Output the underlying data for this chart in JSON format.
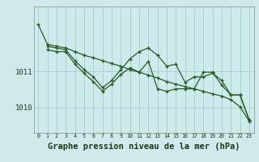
{
  "background_color": "#ceeaea",
  "grid_color": "#aacccc",
  "line_color": "#2d5a27",
  "xlabel": "Graphe pression niveau de la mer (hPa)",
  "xlabel_fontsize": 7.5,
  "ylabel_ticks": [
    1010,
    1011
  ],
  "xlim": [
    -0.5,
    23.5
  ],
  "ylim": [
    1009.3,
    1012.8
  ],
  "series1": {
    "x": [
      0,
      1,
      2,
      3,
      4,
      5,
      6,
      7,
      8,
      9,
      10,
      11,
      12,
      13,
      14,
      15,
      16,
      17,
      18,
      19,
      20,
      21,
      22,
      23
    ],
    "y": [
      1012.3,
      1011.75,
      1011.7,
      1011.65,
      1011.55,
      1011.45,
      1011.38,
      1011.3,
      1011.22,
      1011.15,
      1011.05,
      1010.98,
      1010.9,
      1010.82,
      1010.72,
      1010.65,
      1010.58,
      1010.52,
      1010.45,
      1010.38,
      1010.32,
      1010.22,
      1010.02,
      1009.62
    ]
  },
  "series2": {
    "x": [
      1,
      2,
      3,
      4,
      5,
      6,
      7,
      8,
      9,
      10,
      11,
      12,
      13,
      14,
      15,
      16,
      17,
      18,
      19,
      20,
      21,
      22,
      23
    ],
    "y": [
      1011.7,
      1011.65,
      1011.6,
      1011.3,
      1011.05,
      1010.85,
      1010.55,
      1010.75,
      1011.05,
      1011.35,
      1011.55,
      1011.65,
      1011.45,
      1011.15,
      1011.2,
      1010.7,
      1010.85,
      1010.85,
      1010.95,
      1010.75,
      1010.35,
      1010.35,
      1009.65
    ]
  },
  "series3": {
    "x": [
      1,
      2,
      3,
      4,
      5,
      6,
      7,
      8,
      9,
      10,
      11,
      12,
      13,
      14,
      15,
      16,
      17,
      18,
      19,
      20,
      21,
      22,
      23
    ],
    "y": [
      1011.6,
      1011.55,
      1011.55,
      1011.2,
      1010.95,
      1010.72,
      1010.45,
      1010.65,
      1010.92,
      1011.1,
      1010.98,
      1011.28,
      1010.52,
      1010.45,
      1010.52,
      1010.52,
      1010.52,
      1010.98,
      1010.98,
      1010.62,
      1010.35,
      1010.35,
      1009.65
    ]
  },
  "xticks": [
    0,
    1,
    2,
    3,
    4,
    5,
    6,
    7,
    8,
    9,
    10,
    11,
    12,
    13,
    14,
    15,
    16,
    17,
    18,
    19,
    20,
    21,
    22,
    23
  ],
  "xtick_labels": [
    "0",
    "1",
    "2",
    "3",
    "4",
    "5",
    "6",
    "7",
    "8",
    "9",
    "10",
    "11",
    "12",
    "13",
    "14",
    "15",
    "16",
    "17",
    "18",
    "19",
    "20",
    "21",
    "22",
    "23"
  ]
}
